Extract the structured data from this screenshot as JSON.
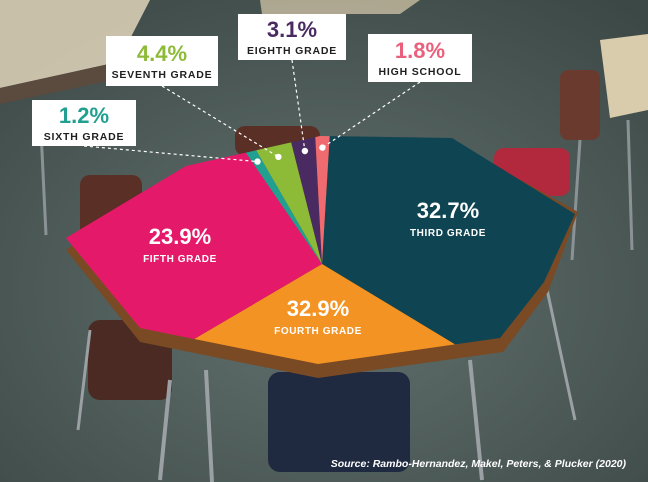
{
  "chart_data": {
    "type": "pie",
    "categories": [
      "Third Grade",
      "Fourth Grade",
      "Fifth Grade",
      "Sixth Grade",
      "Seventh Grade",
      "Eighth Grade",
      "High School"
    ],
    "values": [
      32.7,
      32.9,
      23.9,
      1.2,
      4.4,
      3.1,
      1.8
    ],
    "labels": [
      {
        "pct": "32.7%",
        "name": "THIRD GRADE"
      },
      {
        "pct": "32.9%",
        "name": "FOURTH GRADE"
      },
      {
        "pct": "23.9%",
        "name": "FIFTH GRADE"
      },
      {
        "pct": "1.2%",
        "name": "SIXTH GRADE"
      },
      {
        "pct": "4.4%",
        "name": "SEVENTH GRADE"
      },
      {
        "pct": "3.1%",
        "name": "EIGHTH GRADE"
      },
      {
        "pct": "1.8%",
        "name": "HIGH SCHOOL"
      }
    ],
    "colors": [
      "#0f4452",
      "#f39323",
      "#e5196a",
      "#21a091",
      "#8dbb37",
      "#4a2b61",
      "#ef6b6f"
    ],
    "label_colors": [
      "#ffffff",
      "#ffffff",
      "#ffffff",
      "#21a091",
      "#8dbb37",
      "#4a2b61",
      "#e8607c"
    ],
    "legend": "none",
    "source": "Source: Rambo-Hernandez, Makel, Peters, & Plucker (2020)"
  }
}
